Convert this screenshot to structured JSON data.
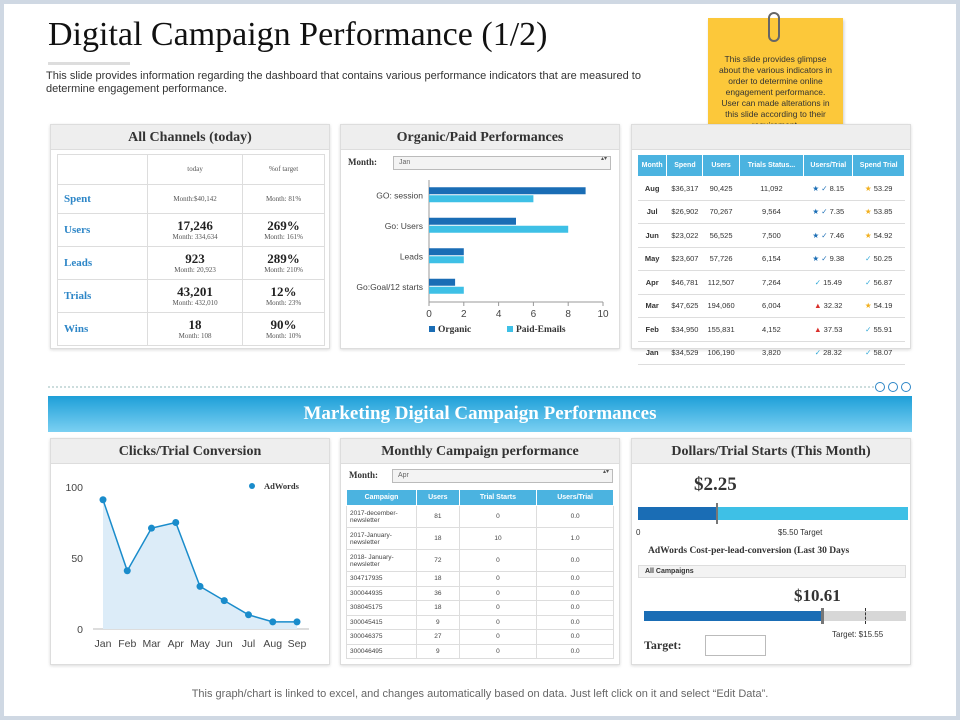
{
  "title": "Digital Campaign Performance (1/2)",
  "subtitle": "This slide provides information regarding the dashboard that contains various performance indicators that are measured to determine engagement performance.",
  "note": "This slide provides glimpse about the various indicators in order to determine online engagement performance. User can made alterations in this slide according to their requirement.",
  "channels": {
    "title": "All Channels (today)",
    "col_today": "today",
    "col_target": "%of target",
    "rows": [
      {
        "label": "Spent",
        "today_big": "",
        "today_small": "Month:$40,142",
        "target_big": "",
        "target_small": "Month: 81%"
      },
      {
        "label": "Users",
        "today_big": "17,246",
        "today_small": "Month: 334,634",
        "target_big": "269%",
        "target_small": "Month: 161%"
      },
      {
        "label": "Leads",
        "today_big": "923",
        "today_small": "Month: 20,923",
        "target_big": "289%",
        "target_small": "Month: 210%"
      },
      {
        "label": "Trials",
        "today_big": "43,201",
        "today_small": "Month: 432,010",
        "target_big": "12%",
        "target_small": "Month: 23%"
      },
      {
        "label": "Wins",
        "today_big": "18",
        "today_small": "Month: 108",
        "target_big": "90%",
        "target_small": "Month: 10%"
      }
    ]
  },
  "organic": {
    "title": "Organic/Paid Performances",
    "month_label": "Month:",
    "month_value": "Jan"
  },
  "chart_data": [
    {
      "type": "bar",
      "orientation": "horizontal",
      "categories": [
        "GO: session",
        "Go: Users",
        "Leads",
        "Go:Goal/12 starts"
      ],
      "series": [
        {
          "name": "Organic",
          "values": [
            9,
            5,
            2,
            1.5
          ]
        },
        {
          "name": "Paid-Emails",
          "values": [
            6,
            8,
            2,
            2
          ]
        }
      ],
      "xlim": [
        0,
        10
      ],
      "xticks": [
        0,
        2,
        4,
        6,
        8,
        10
      ],
      "legend": "bottom",
      "colors": [
        "#1a6db5",
        "#3ec0e6"
      ]
    },
    {
      "type": "area",
      "title": "Clicks/Trial Conversion",
      "categories": [
        "Jan",
        "Feb",
        "Mar",
        "Apr",
        "May",
        "Jun",
        "Jul",
        "Aug",
        "Sep"
      ],
      "series": [
        {
          "name": "AdWords",
          "values": [
            91,
            41,
            71,
            75,
            30,
            20,
            10,
            5,
            5
          ]
        }
      ],
      "ylim": [
        0,
        100
      ],
      "yticks": [
        0,
        50,
        100
      ],
      "legend": "top-right",
      "colors": [
        "#1a8ccb"
      ]
    }
  ],
  "metrics": {
    "headers": [
      "Month",
      "Spend",
      "Users",
      "Trials Status...",
      "Users/Trial",
      "Spend Trial"
    ],
    "rows": [
      {
        "month": "Aug",
        "spend": "$36,317",
        "users": "90,425",
        "trials": "11,092",
        "ut_icon": "★ ✓",
        "ut": "8.15",
        "st_icon": "★",
        "st": "53.29"
      },
      {
        "month": "Jul",
        "spend": "$26,902",
        "users": "70,267",
        "trials": "9,564",
        "ut_icon": "★ ✓",
        "ut": "7.35",
        "st_icon": "★",
        "st": "53.85"
      },
      {
        "month": "Jun",
        "spend": "$23,022",
        "users": "56,525",
        "trials": "7,500",
        "ut_icon": "★ ✓",
        "ut": "7.46",
        "st_icon": "★",
        "st": "54.92"
      },
      {
        "month": "May",
        "spend": "$23,607",
        "users": "57,726",
        "trials": "6,154",
        "ut_icon": "★ ✓",
        "ut": "9.38",
        "st_icon": "✓",
        "st": "50.25"
      },
      {
        "month": "Apr",
        "spend": "$46,781",
        "users": "112,507",
        "trials": "7,264",
        "ut_icon": "✓",
        "ut": "15.49",
        "st_icon": "✓",
        "st": "56.87"
      },
      {
        "month": "Mar",
        "spend": "$47,625",
        "users": "194,060",
        "trials": "6,004",
        "ut_icon": "▲",
        "ut": "32.32",
        "st_icon": "★",
        "st": "54.19"
      },
      {
        "month": "Feb",
        "spend": "$34,950",
        "users": "155,831",
        "trials": "4,152",
        "ut_icon": "▲",
        "ut": "37.53",
        "st_icon": "✓",
        "st": "55.91"
      },
      {
        "month": "Jan",
        "spend": "$34,529",
        "users": "106,190",
        "trials": "3,820",
        "ut_icon": "✓",
        "ut": "28.32",
        "st_icon": "✓",
        "st": "58.07"
      }
    ]
  },
  "banner": "Marketing Digital Campaign Performances",
  "clicks": {
    "title": "Clicks/Trial Conversion"
  },
  "monthly": {
    "title": "Monthly Campaign performance",
    "month_label": "Month:",
    "month_value": "Apr",
    "headers": [
      "Campaign",
      "Users",
      "Trial Starts",
      "Users/Trial"
    ],
    "rows": [
      {
        "campaign": "2017-december-newsletter",
        "users": "81",
        "trials": "0",
        "ratio": "0.0"
      },
      {
        "campaign": "2017-January-newsletter",
        "users": "18",
        "trials": "10",
        "ratio": "1.0"
      },
      {
        "campaign": "2018- January-newsletter",
        "users": "72",
        "trials": "0",
        "ratio": "0.0"
      },
      {
        "campaign": "304717935",
        "users": "18",
        "trials": "0",
        "ratio": "0.0"
      },
      {
        "campaign": "300044935",
        "users": "36",
        "trials": "0",
        "ratio": "0.0"
      },
      {
        "campaign": "308045175",
        "users": "18",
        "trials": "0",
        "ratio": "0.0"
      },
      {
        "campaign": "300045415",
        "users": "9",
        "trials": "0",
        "ratio": "0.0"
      },
      {
        "campaign": "300046375",
        "users": "27",
        "trials": "0",
        "ratio": "0.0"
      },
      {
        "campaign": "300046495",
        "users": "9",
        "trials": "0",
        "ratio": "0.0"
      }
    ]
  },
  "dollars": {
    "title": "Dollars/Trial Starts (This Month)",
    "value1": "$2.25",
    "value1_fill": 0.29,
    "scale_zero": "0",
    "target1": "$5.50 Target",
    "subheading": "AdWords Cost-per-lead-conversion (Last 30 Days",
    "filter": "All Campaigns",
    "value2": "$10.61",
    "value2_fill": 0.68,
    "target2": "Target: $15.55",
    "target_label": "Target:"
  },
  "footer": "This graph/chart is linked to excel, and changes automatically based on data. Just left click on it and select “Edit Data”.",
  "colors": {
    "accent": "#2d86c7",
    "dark_bar": "#1a6db5",
    "light_bar": "#3ec0e6",
    "note": "#fcc83a"
  }
}
